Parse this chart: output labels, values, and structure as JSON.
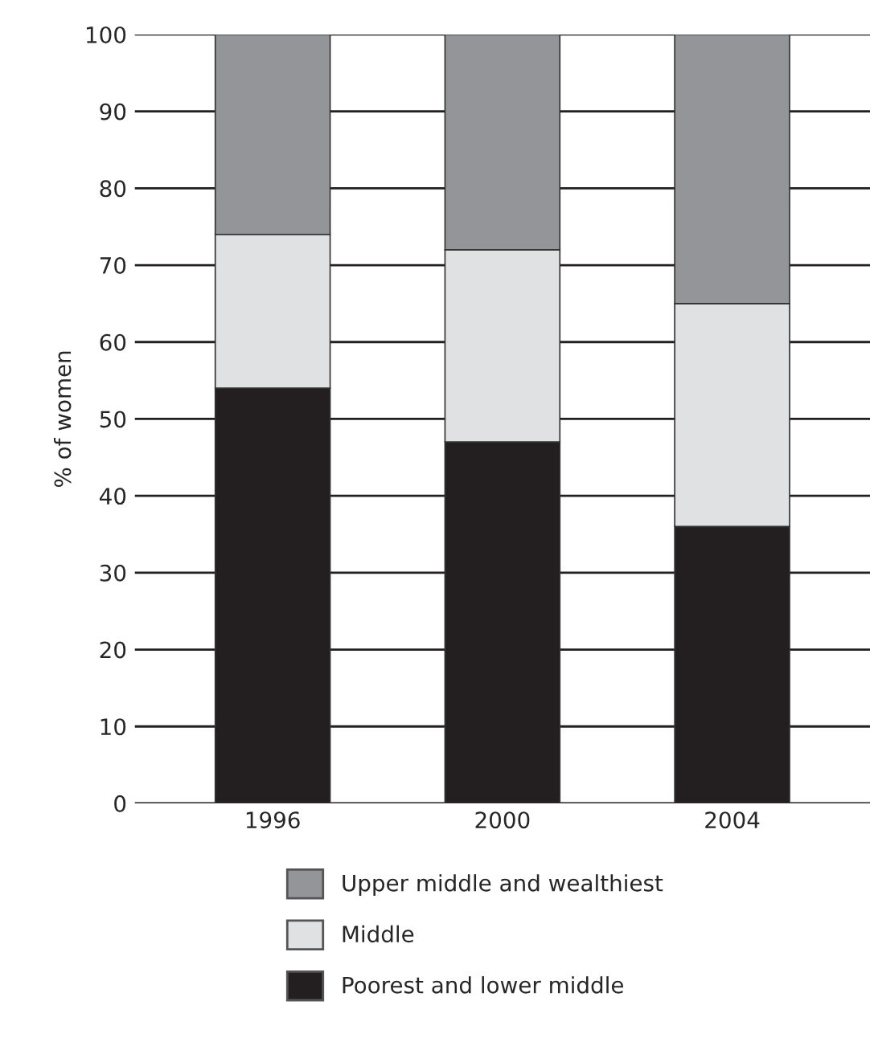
{
  "chart_data": {
    "type": "bar",
    "stacked": true,
    "ylabel": "% of women",
    "categories": [
      "1996",
      "2000",
      "2004"
    ],
    "series": [
      {
        "name": "Poorest and lower middle",
        "color": "#231f20",
        "values": [
          54,
          47,
          36
        ]
      },
      {
        "name": "Middle",
        "color": "#e0e1e3",
        "values": [
          20,
          25,
          29
        ]
      },
      {
        "name": "Upper middle and wealthiest",
        "color": "#939598",
        "values": [
          26,
          28,
          35
        ]
      }
    ],
    "ylim": [
      0,
      100
    ],
    "yticks": [
      0,
      10,
      20,
      30,
      40,
      50,
      60,
      70,
      80,
      90,
      100
    ],
    "grid": "y",
    "legend": "bottom"
  }
}
